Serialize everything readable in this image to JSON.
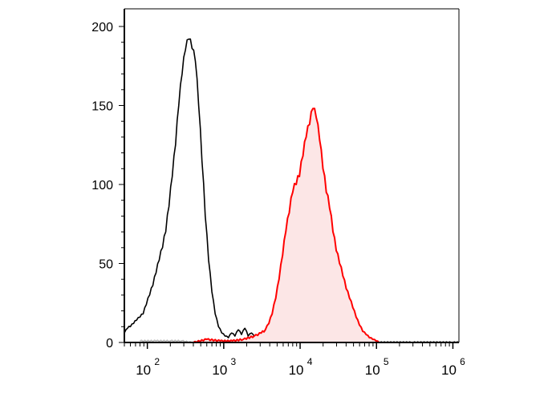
{
  "chart_data": {
    "type": "area",
    "title": "",
    "xlabel": "",
    "ylabel": "",
    "x_scale": "log",
    "xlim": [
      50,
      1200000
    ],
    "ylim": [
      0,
      200
    ],
    "x_ticks": [
      {
        "value": 100,
        "base": "10",
        "exp": "2"
      },
      {
        "value": 1000,
        "base": "10",
        "exp": "3"
      },
      {
        "value": 10000,
        "base": "10",
        "exp": "4"
      },
      {
        "value": 100000,
        "base": "10",
        "exp": "5"
      },
      {
        "value": 1000000,
        "base": "10",
        "exp": "6"
      }
    ],
    "y_ticks": [
      {
        "value": 0,
        "label": "0"
      },
      {
        "value": 50,
        "label": "50"
      },
      {
        "value": 100,
        "label": "100"
      },
      {
        "value": 150,
        "label": "150"
      },
      {
        "value": 200,
        "label": "200"
      }
    ],
    "grid": false,
    "series": [
      {
        "color": "#000000",
        "fill": "none",
        "x": [
          50,
          55,
          60,
          66,
          72,
          80,
          88,
          97,
          107,
          118,
          130,
          143,
          158,
          174,
          192,
          212,
          234,
          258,
          285,
          315,
          348,
          385,
          425,
          470,
          519,
          573,
          633,
          699,
          772,
          853,
          942,
          1040,
          1150,
          1270,
          1400,
          1550,
          1710,
          1890,
          2090,
          2310,
          2550,
          2820,
          3110,
          3440,
          3800,
          4500,
          6000,
          8000,
          12000,
          20000,
          50000,
          100000,
          300000,
          1000000,
          1200000
        ],
        "values": [
          6,
          9,
          10,
          12,
          14,
          16,
          18,
          24,
          30,
          36,
          44,
          52,
          60,
          70,
          86,
          105,
          125,
          150,
          170,
          185,
          192,
          186,
          178,
          150,
          115,
          80,
          52,
          32,
          18,
          10,
          6,
          4,
          3,
          6,
          4,
          8,
          5,
          9,
          4,
          6,
          3,
          4,
          3,
          2,
          2,
          2,
          1,
          1,
          1,
          1,
          1,
          0,
          0,
          0,
          0
        ]
      },
      {
        "color": "#ff0000",
        "fill": "#fce6e6",
        "x": [
          400,
          600,
          900,
          1300,
          1800,
          2500,
          3100,
          3500,
          3900,
          4300,
          4800,
          5300,
          5900,
          6500,
          7200,
          8000,
          8900,
          9800,
          10900,
          12000,
          13300,
          14700,
          16300,
          18000,
          19900,
          22000,
          24300,
          26900,
          29700,
          32800,
          36300,
          40100,
          44300,
          49000,
          54100,
          59800,
          66100,
          73100,
          80800,
          89300,
          98700,
          108000
        ],
        "values": [
          0,
          2,
          1,
          1,
          2,
          4,
          6,
          8,
          12,
          18,
          28,
          40,
          55,
          70,
          82,
          95,
          100,
          105,
          118,
          130,
          138,
          148,
          142,
          128,
          110,
          95,
          85,
          70,
          58,
          50,
          42,
          34,
          28,
          22,
          16,
          11,
          7,
          5,
          3,
          2,
          1,
          0
        ]
      },
      {
        "color": "#b3b3b3",
        "fill": "none",
        "x": [
          80,
          130,
          200,
          280,
          380
        ],
        "values": [
          1,
          1,
          1,
          1,
          0
        ]
      }
    ]
  }
}
